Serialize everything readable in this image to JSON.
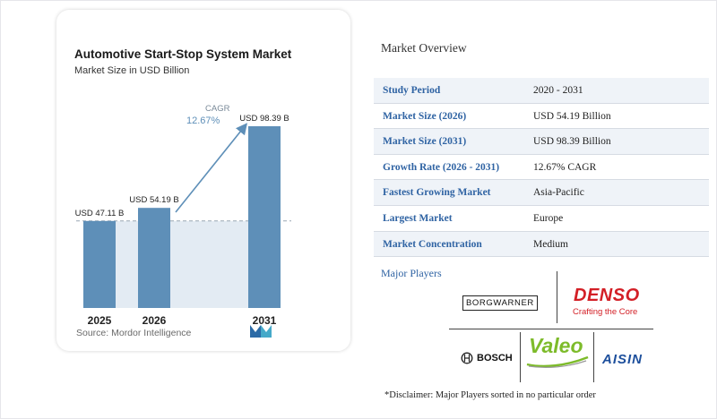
{
  "chart_card": {
    "title": "Automotive Start-Stop System Market",
    "subtitle": "Market Size in USD Billion",
    "source": "Source: Mordor Intelligence",
    "cagr_label": "CAGR",
    "cagr_value": "12.67%"
  },
  "chart_data": {
    "type": "bar",
    "title": "Automotive Start-Stop System Market",
    "subtitle": "Market Size in USD Billion",
    "categories": [
      "2025",
      "2026",
      "2031"
    ],
    "values": [
      47.11,
      54.19,
      98.39
    ],
    "data_labels": [
      "USD 47.11 B",
      "USD 54.19 B",
      "USD 98.39 B"
    ],
    "bar_color": "#5e8fb8",
    "annotation": "CAGR 12.67%",
    "grid": false
  },
  "overview": {
    "title": "Market Overview",
    "rows": [
      {
        "key": "Study Period",
        "value": "2020 - 2031"
      },
      {
        "key": "Market Size (2026)",
        "value": "USD 54.19 Billion"
      },
      {
        "key": "Market Size (2031)",
        "value": "USD 98.39 Billion"
      },
      {
        "key": "Growth Rate (2026 - 2031)",
        "value": "12.67% CAGR"
      },
      {
        "key": "Fastest Growing Market",
        "value": "Asia-Pacific"
      },
      {
        "key": "Largest Market",
        "value": "Europe"
      },
      {
        "key": "Market Concentration",
        "value": "Medium"
      }
    ]
  },
  "players": {
    "title": "Major Players",
    "logos": {
      "borgwarner": "BORGWARNER",
      "denso": "DENSO",
      "denso_tagline": "Crafting the Core",
      "bosch": "BOSCH",
      "valeo": "Valeo",
      "aisin": "AISIN"
    },
    "disclaimer": "*Disclaimer: Major Players sorted in no particular order"
  },
  "colors": {
    "accent_blue": "#2f63a3",
    "bar": "#5e8fb8",
    "denso_red": "#d31f26",
    "valeo_green": "#7dbb2a"
  }
}
